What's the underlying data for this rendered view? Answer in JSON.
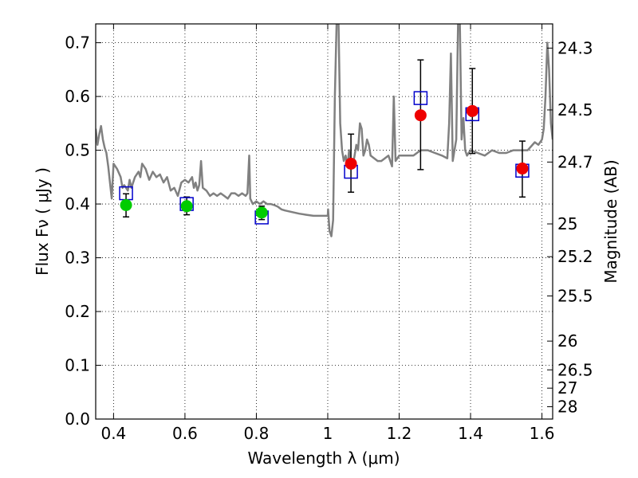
{
  "chart_data": {
    "type": "scatter",
    "xlabel": "Wavelength  λ (μm)",
    "ylabel": "Flux  Fν  ( μJy )",
    "ylabel_right": "Magnitude (AB)",
    "xlim": [
      0.35,
      1.63
    ],
    "ylim": [
      0.0,
      0.735
    ],
    "grid": true,
    "x_ticks": [
      0.4,
      0.6,
      0.8,
      1.0,
      1.2,
      1.4,
      1.6
    ],
    "x_tick_labels": [
      "0.4",
      "0.6",
      "0.8",
      "1",
      "1.2",
      "1.4",
      "1.6"
    ],
    "y_ticks": [
      0.0,
      0.1,
      0.2,
      0.3,
      0.4,
      0.5,
      0.6,
      0.7
    ],
    "y_tick_labels": [
      "0.0",
      "0.1",
      "0.2",
      "0.3",
      "0.4",
      "0.5",
      "0.6",
      "0.7"
    ],
    "right_ticks": [
      {
        "label": "24.3",
        "flux": 0.69
      },
      {
        "label": "24.5",
        "flux": 0.575
      },
      {
        "label": "24.7",
        "flux": 0.478
      },
      {
        "label": "25",
        "flux": 0.363
      },
      {
        "label": "25.2",
        "flux": 0.302
      },
      {
        "label": "25.5",
        "flux": 0.229
      },
      {
        "label": "26",
        "flux": 0.145
      },
      {
        "label": "26.5",
        "flux": 0.0915
      },
      {
        "label": "27",
        "flux": 0.0575
      },
      {
        "label": "28",
        "flux": 0.0229
      }
    ],
    "series": [
      {
        "marker": "line",
        "color": "#808080",
        "points": [
          [
            0.35,
            0.54
          ],
          [
            0.355,
            0.51
          ],
          [
            0.36,
            0.53
          ],
          [
            0.365,
            0.545
          ],
          [
            0.37,
            0.52
          ],
          [
            0.375,
            0.505
          ],
          [
            0.38,
            0.495
          ],
          [
            0.385,
            0.47
          ],
          [
            0.39,
            0.44
          ],
          [
            0.395,
            0.41
          ],
          [
            0.4,
            0.475
          ],
          [
            0.41,
            0.465
          ],
          [
            0.42,
            0.45
          ],
          [
            0.425,
            0.43
          ],
          [
            0.43,
            0.435
          ],
          [
            0.44,
            0.425
          ],
          [
            0.445,
            0.445
          ],
          [
            0.45,
            0.43
          ],
          [
            0.46,
            0.45
          ],
          [
            0.47,
            0.46
          ],
          [
            0.475,
            0.45
          ],
          [
            0.48,
            0.475
          ],
          [
            0.49,
            0.465
          ],
          [
            0.5,
            0.445
          ],
          [
            0.51,
            0.46
          ],
          [
            0.52,
            0.45
          ],
          [
            0.53,
            0.455
          ],
          [
            0.54,
            0.44
          ],
          [
            0.55,
            0.45
          ],
          [
            0.56,
            0.425
          ],
          [
            0.57,
            0.43
          ],
          [
            0.58,
            0.415
          ],
          [
            0.59,
            0.44
          ],
          [
            0.6,
            0.445
          ],
          [
            0.61,
            0.44
          ],
          [
            0.62,
            0.45
          ],
          [
            0.625,
            0.43
          ],
          [
            0.63,
            0.44
          ],
          [
            0.635,
            0.425
          ],
          [
            0.64,
            0.435
          ],
          [
            0.645,
            0.48
          ],
          [
            0.65,
            0.43
          ],
          [
            0.66,
            0.425
          ],
          [
            0.67,
            0.415
          ],
          [
            0.68,
            0.42
          ],
          [
            0.69,
            0.415
          ],
          [
            0.7,
            0.42
          ],
          [
            0.71,
            0.415
          ],
          [
            0.72,
            0.41
          ],
          [
            0.73,
            0.42
          ],
          [
            0.74,
            0.42
          ],
          [
            0.75,
            0.415
          ],
          [
            0.76,
            0.42
          ],
          [
            0.77,
            0.415
          ],
          [
            0.775,
            0.42
          ],
          [
            0.78,
            0.49
          ],
          [
            0.783,
            0.41
          ],
          [
            0.79,
            0.4
          ],
          [
            0.8,
            0.405
          ],
          [
            0.81,
            0.4
          ],
          [
            0.82,
            0.405
          ],
          [
            0.83,
            0.4
          ],
          [
            0.84,
            0.4
          ],
          [
            0.85,
            0.398
          ],
          [
            0.86,
            0.395
          ],
          [
            0.87,
            0.39
          ],
          [
            0.88,
            0.388
          ],
          [
            0.9,
            0.385
          ],
          [
            0.92,
            0.382
          ],
          [
            0.94,
            0.38
          ],
          [
            0.96,
            0.378
          ],
          [
            0.98,
            0.378
          ],
          [
            1.0,
            0.378
          ],
          [
            1.001,
            0.39
          ],
          [
            1.005,
            0.35
          ],
          [
            1.01,
            0.34
          ],
          [
            1.015,
            0.37
          ],
          [
            1.02,
            0.6
          ],
          [
            1.025,
            0.745
          ],
          [
            1.03,
            0.745
          ],
          [
            1.035,
            0.55
          ],
          [
            1.04,
            0.5
          ],
          [
            1.045,
            0.48
          ],
          [
            1.05,
            0.49
          ],
          [
            1.055,
            0.47
          ],
          [
            1.06,
            0.5
          ],
          [
            1.065,
            0.48
          ],
          [
            1.07,
            0.47
          ],
          [
            1.075,
            0.49
          ],
          [
            1.08,
            0.51
          ],
          [
            1.085,
            0.5
          ],
          [
            1.09,
            0.55
          ],
          [
            1.095,
            0.54
          ],
          [
            1.1,
            0.49
          ],
          [
            1.105,
            0.5
          ],
          [
            1.11,
            0.52
          ],
          [
            1.115,
            0.51
          ],
          [
            1.12,
            0.49
          ],
          [
            1.13,
            0.485
          ],
          [
            1.14,
            0.48
          ],
          [
            1.15,
            0.48
          ],
          [
            1.16,
            0.485
          ],
          [
            1.17,
            0.49
          ],
          [
            1.18,
            0.47
          ],
          [
            1.185,
            0.6
          ],
          [
            1.19,
            0.48
          ],
          [
            1.2,
            0.49
          ],
          [
            1.22,
            0.49
          ],
          [
            1.24,
            0.49
          ],
          [
            1.26,
            0.5
          ],
          [
            1.28,
            0.5
          ],
          [
            1.3,
            0.495
          ],
          [
            1.32,
            0.49
          ],
          [
            1.335,
            0.485
          ],
          [
            1.34,
            0.55
          ],
          [
            1.345,
            0.68
          ],
          [
            1.35,
            0.48
          ],
          [
            1.36,
            0.52
          ],
          [
            1.365,
            0.74
          ],
          [
            1.37,
            0.74
          ],
          [
            1.375,
            0.52
          ],
          [
            1.38,
            0.56
          ],
          [
            1.385,
            0.5
          ],
          [
            1.39,
            0.49
          ],
          [
            1.4,
            0.5
          ],
          [
            1.42,
            0.495
          ],
          [
            1.44,
            0.49
          ],
          [
            1.46,
            0.5
          ],
          [
            1.48,
            0.495
          ],
          [
            1.5,
            0.495
          ],
          [
            1.52,
            0.5
          ],
          [
            1.54,
            0.5
          ],
          [
            1.56,
            0.5
          ],
          [
            1.58,
            0.515
          ],
          [
            1.59,
            0.51
          ],
          [
            1.6,
            0.52
          ],
          [
            1.605,
            0.54
          ],
          [
            1.61,
            0.6
          ],
          [
            1.615,
            0.7
          ],
          [
            1.62,
            0.65
          ],
          [
            1.625,
            0.55
          ],
          [
            1.63,
            0.52
          ]
        ]
      },
      {
        "marker": "square",
        "color": "#0000cc",
        "points": [
          [
            0.435,
            0.42
          ],
          [
            0.605,
            0.4
          ],
          [
            0.815,
            0.375
          ],
          [
            1.065,
            0.46
          ],
          [
            1.26,
            0.597
          ],
          [
            1.405,
            0.567
          ],
          [
            1.545,
            0.462
          ]
        ]
      },
      {
        "marker": "circle",
        "color": "#00cc00",
        "points": [
          [
            0.435,
            0.398
          ],
          [
            0.605,
            0.396
          ],
          [
            0.815,
            0.384
          ]
        ]
      },
      {
        "marker": "circle",
        "color": "#ee0000",
        "points": [
          [
            1.065,
            0.475
          ],
          [
            1.26,
            0.565
          ],
          [
            1.405,
            0.573
          ],
          [
            1.545,
            0.466
          ]
        ]
      }
    ],
    "error_bars": [
      {
        "x": 0.435,
        "low": 0.376,
        "high": 0.419
      },
      {
        "x": 0.605,
        "low": 0.38,
        "high": 0.413
      },
      {
        "x": 0.815,
        "low": 0.371,
        "high": 0.396
      },
      {
        "x": 1.065,
        "low": 0.422,
        "high": 0.53
      },
      {
        "x": 1.26,
        "low": 0.464,
        "high": 0.668
      },
      {
        "x": 1.405,
        "low": 0.494,
        "high": 0.652
      },
      {
        "x": 1.545,
        "low": 0.413,
        "high": 0.517
      }
    ]
  }
}
